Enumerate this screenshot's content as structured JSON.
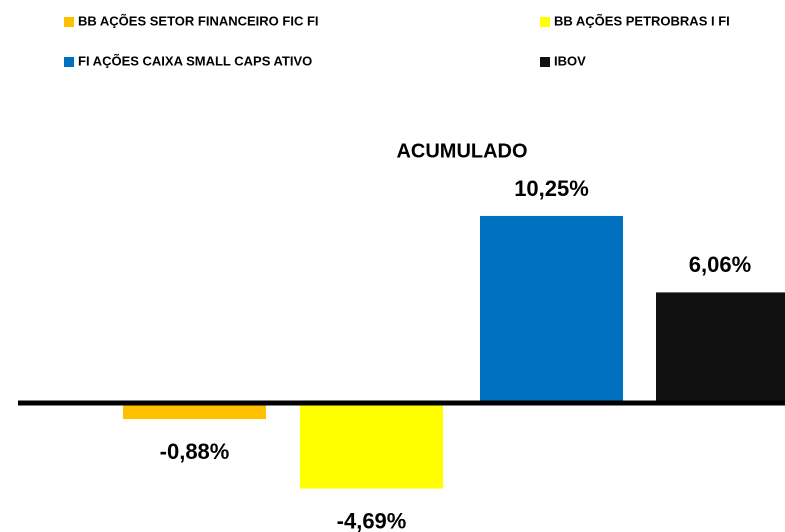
{
  "chart_data": {
    "type": "bar",
    "title": "ACUMULADO",
    "series": [
      {
        "name": "BB AÇÕES SETOR FINANCEIRO FIC FI",
        "color": "#ffc000",
        "values": [
          -0.88
        ],
        "value_labels": [
          "-0,88%"
        ]
      },
      {
        "name": "BB AÇÕES PETROBRAS I FI",
        "color": "#ffff00",
        "values": [
          -4.69
        ],
        "value_labels": [
          "-4,69%"
        ]
      },
      {
        "name": "FI AÇÕES CAIXA SMALL CAPS ATIVO",
        "color": "#0070c0",
        "values": [
          10.25
        ],
        "value_labels": [
          "10,25%"
        ]
      },
      {
        "name": "IBOV",
        "color": "#111111",
        "values": [
          6.06
        ],
        "value_labels": [
          "6,06%"
        ]
      }
    ],
    "ylim": [
      -6,
      12
    ]
  }
}
